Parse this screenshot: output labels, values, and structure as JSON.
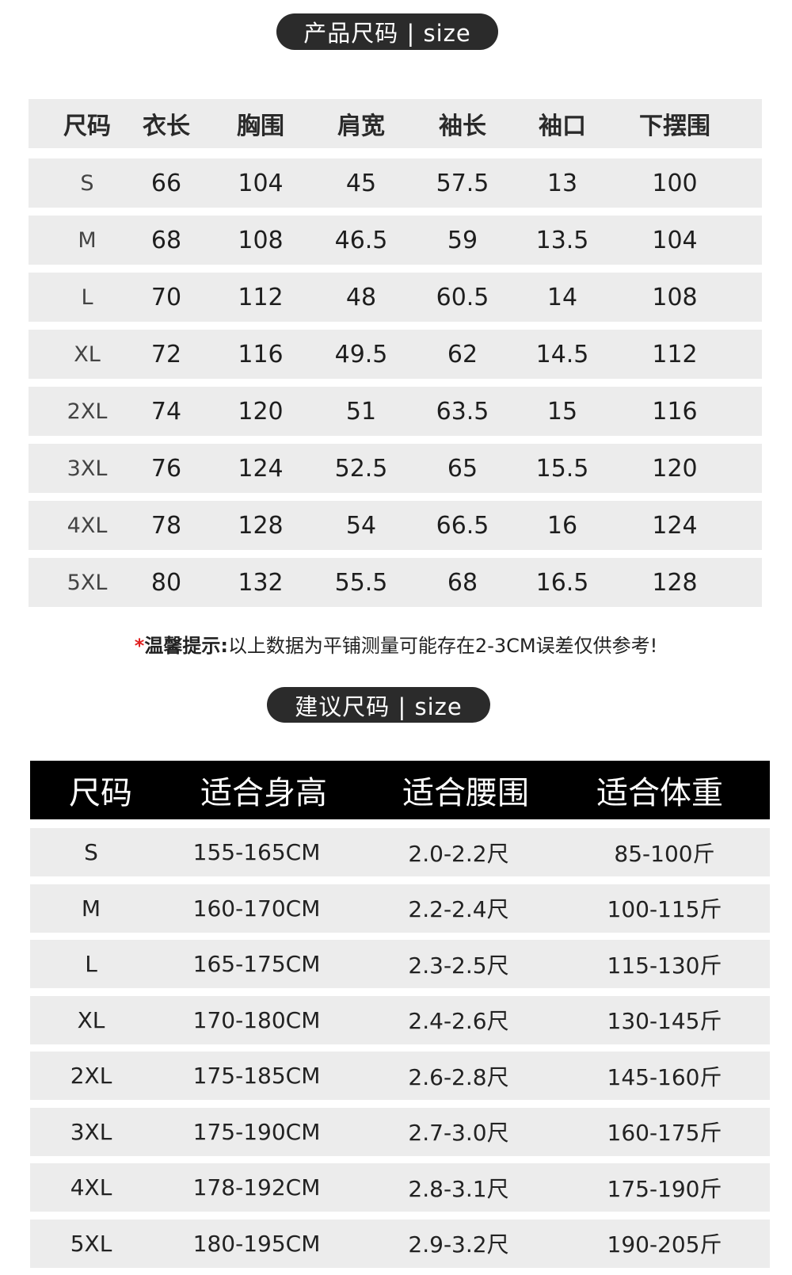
{
  "product_size": {
    "badge": "产品尺码 | size",
    "headers": [
      "尺码",
      "衣长",
      "胸围",
      "肩宽",
      "袖长",
      "袖口",
      "下摆围"
    ],
    "rows": [
      [
        "S",
        "66",
        "104",
        "45",
        "57.5",
        "13",
        "100"
      ],
      [
        "M",
        "68",
        "108",
        "46.5",
        "59",
        "13.5",
        "104"
      ],
      [
        "L",
        "70",
        "112",
        "48",
        "60.5",
        "14",
        "108"
      ],
      [
        "XL",
        "72",
        "116",
        "49.5",
        "62",
        "14.5",
        "112"
      ],
      [
        "2XL",
        "74",
        "120",
        "51",
        "63.5",
        "15",
        "116"
      ],
      [
        "3XL",
        "76",
        "124",
        "52.5",
        "65",
        "15.5",
        "120"
      ],
      [
        "4XL",
        "78",
        "128",
        "54",
        "66.5",
        "16",
        "124"
      ],
      [
        "5XL",
        "80",
        "132",
        "55.5",
        "68",
        "16.5",
        "128"
      ]
    ]
  },
  "note": {
    "star": "*",
    "label": "温馨提示:",
    "text": "以上数据为平铺测量可能存在2-3CM误差仅供参考!"
  },
  "suggested_size": {
    "badge": "建议尺码 | size",
    "headers": [
      "尺码",
      "适合身高",
      "适合腰围",
      "适合体重"
    ],
    "rows": [
      [
        "S",
        "155-165CM",
        "2.0-2.2尺",
        "85-100斤"
      ],
      [
        "M",
        "160-170CM",
        "2.2-2.4尺",
        "100-115斤"
      ],
      [
        "L",
        "165-175CM",
        "2.3-2.5尺",
        "115-130斤"
      ],
      [
        "XL",
        "170-180CM",
        "2.4-2.6尺",
        "130-145斤"
      ],
      [
        "2XL",
        "175-185CM",
        "2.6-2.8尺",
        "145-160斤"
      ],
      [
        "3XL",
        "175-190CM",
        "2.7-3.0尺",
        "160-175斤"
      ],
      [
        "4XL",
        "178-192CM",
        "2.8-3.1尺",
        "175-190斤"
      ],
      [
        "5XL",
        "180-195CM",
        "2.9-3.2尺",
        "190-205斤"
      ]
    ]
  },
  "colors": {
    "badge_bg": "#2b2b2b",
    "row_bg": "#ececec",
    "header2_bg": "#000000",
    "note_star": "#e02020"
  }
}
